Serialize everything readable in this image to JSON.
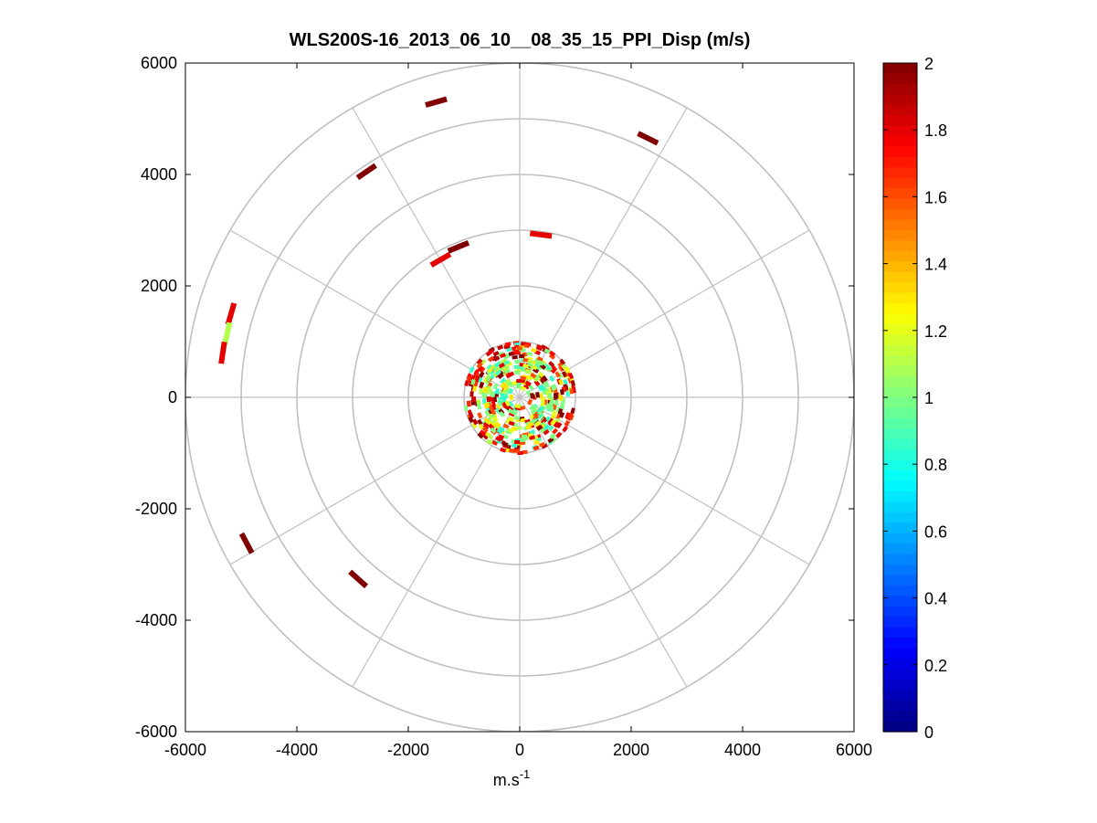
{
  "chart_data": {
    "type": "polar-ppi",
    "title": "WLS200S-16_2013_06_10__08_35_15_PPI_Disp (m/s)",
    "xlabel": "m.s",
    "xlabel_superscript": "-1",
    "ylabel": "",
    "xlim": [
      -6000,
      6000
    ],
    "ylim": [
      -6000,
      6000
    ],
    "x_ticks": [
      "-6000",
      "-4000",
      "-2000",
      "0",
      "2000",
      "4000",
      "6000"
    ],
    "y_ticks": [
      "6000",
      "4000",
      "2000",
      "0",
      "-2000",
      "-4000",
      "-6000"
    ],
    "polar_grid": {
      "range_rings_m": [
        1000,
        2000,
        3000,
        4000,
        5000,
        6000
      ],
      "spoke_step_deg": 30
    },
    "colorbar": {
      "colormap": "jet",
      "min": 0,
      "max": 2,
      "tick_labels": [
        "2",
        "1.8",
        "1.6",
        "1.4",
        "1.2",
        "1",
        "0.8",
        "0.6",
        "0.4",
        "0.2",
        "0"
      ]
    },
    "near_field": {
      "range_min_m": 150,
      "range_max_m": 1000,
      "dominant_value": 1.0
    },
    "segments": [
      {
        "x": -1500,
        "y": 5300,
        "value": 2.0
      },
      {
        "x": 2300,
        "y": 4650,
        "value": 2.0
      },
      {
        "x": -2750,
        "y": 4050,
        "value": 2.0
      },
      {
        "x": 380,
        "y": 2920,
        "value": 1.8
      },
      {
        "x": -1100,
        "y": 2700,
        "value": 2.0
      },
      {
        "x": -1420,
        "y": 2470,
        "value": 1.8
      },
      {
        "x": -5180,
        "y": 1500,
        "value": 1.8
      },
      {
        "x": -5250,
        "y": 1150,
        "value": 1.1
      },
      {
        "x": -5330,
        "y": 800,
        "value": 1.8
      },
      {
        "x": -4900,
        "y": -2620,
        "value": 2.0
      },
      {
        "x": -2900,
        "y": -3260,
        "value": 2.0
      }
    ]
  }
}
